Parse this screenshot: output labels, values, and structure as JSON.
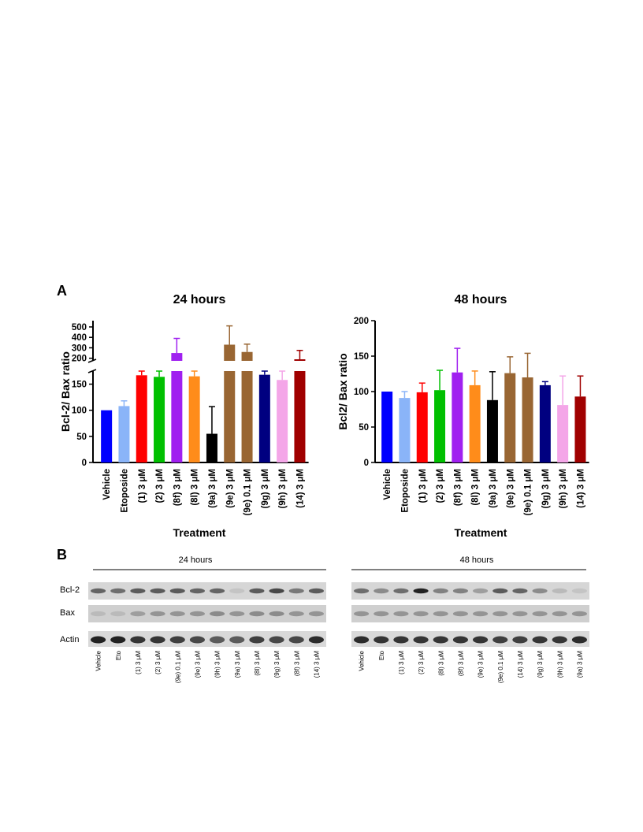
{
  "panels": {
    "a": "A",
    "b": "B"
  },
  "colors": [
    "#0000ff",
    "#8ab4f8",
    "#ff0000",
    "#00c000",
    "#a020f0",
    "#ff8c1a",
    "#000000",
    "#996633",
    "#996633",
    "#000080",
    "#f4a6e8",
    "#a00000"
  ],
  "chart_data": [
    {
      "type": "bar",
      "title": "24 hours",
      "xlabel": "Treatment",
      "ylabel": "Bcl-2/ Bax ratio",
      "axis_break": true,
      "lower_ylim": [
        0,
        175
      ],
      "lower_yticks": [
        "0",
        "50",
        "100",
        "150"
      ],
      "upper_ylim": [
        175,
        560
      ],
      "upper_yticks": [
        "200",
        "300",
        "400",
        "500"
      ],
      "categories": [
        "Vehicle",
        "Etoposide",
        "(1) 3 μM",
        "(2) 3 μM",
        "(8f) 3 μM",
        "(8l) 3 μM",
        "(9a) 3 μM",
        "(9e) 3 μM",
        "(9e) 0.1 μM",
        "(9g) 3 μM",
        "(9h) 3 μM",
        "(14) 3 μM"
      ],
      "values": [
        100,
        108,
        167,
        164,
        250,
        165,
        55,
        330,
        260,
        168,
        158,
        190
      ],
      "errors": [
        0,
        10,
        12,
        25,
        140,
        30,
        52,
        180,
        75,
        20,
        25,
        85
      ]
    },
    {
      "type": "bar",
      "title": "48 hours",
      "xlabel": "Treatment",
      "ylabel": "Bcl2/ Bax ratio",
      "ylim": [
        0,
        200
      ],
      "yticks": [
        "0",
        "50",
        "100",
        "150",
        "200"
      ],
      "categories": [
        "Vehicle",
        "Etoposide",
        "(1) 3 μM",
        "(2) 3 μM",
        "(8f) 3 μM",
        "(8l) 3 μM",
        "(9a) 3 μM",
        "(9e) 3 μM",
        "(9e) 0.1 μM",
        "(9g) 3 μM",
        "(9h) 3 μM",
        "(14) 3 μM"
      ],
      "values": [
        100,
        91,
        99,
        102,
        127,
        109,
        88,
        126,
        120,
        109,
        81,
        93
      ],
      "errors": [
        0,
        9,
        13,
        28,
        34,
        20,
        40,
        23,
        34,
        5,
        41,
        29
      ]
    }
  ],
  "blot": {
    "left": {
      "header": "24 hours",
      "lanes": [
        "Vehicle",
        "Eto",
        "(1) 3 μM",
        "(2) 3 μM",
        "(9e) 0.1 μM",
        "(9e) 3 μM",
        "(9h) 3 μM",
        "(9a) 3 μM",
        "(8l) 3 μM",
        "(9g) 3 μM",
        "(8f) 3 μM",
        "(14) 3 μM"
      ],
      "bcl2": [
        0.55,
        0.5,
        0.6,
        0.6,
        0.6,
        0.55,
        0.55,
        0.05,
        0.6,
        0.7,
        0.45,
        0.6
      ],
      "bax": [
        0.1,
        0.1,
        0.25,
        0.3,
        0.3,
        0.3,
        0.35,
        0.3,
        0.35,
        0.35,
        0.3,
        0.3
      ],
      "actin": [
        0.9,
        0.9,
        0.8,
        0.8,
        0.75,
        0.7,
        0.6,
        0.6,
        0.75,
        0.7,
        0.7,
        0.85
      ]
    },
    "right": {
      "header": "48 hours",
      "lanes": [
        "Vehicle",
        "Eto",
        "(1) 3 μM",
        "(2) 3 μM",
        "(8l) 3 μM",
        "(8f) 3 μM",
        "(9e) 3 μM",
        "(9e) 0.1 μM",
        "(14) 3 μM",
        "(9g) 3 μM",
        "(9h) 3 μM",
        "(9a) 3 μM"
      ],
      "bcl2": [
        0.5,
        0.35,
        0.5,
        0.9,
        0.4,
        0.4,
        0.25,
        0.6,
        0.55,
        0.35,
        0.1,
        0.05
      ],
      "bax": [
        0.3,
        0.3,
        0.3,
        0.3,
        0.3,
        0.3,
        0.3,
        0.3,
        0.3,
        0.3,
        0.3,
        0.3
      ],
      "actin": [
        0.85,
        0.8,
        0.8,
        0.8,
        0.8,
        0.8,
        0.8,
        0.75,
        0.75,
        0.8,
        0.8,
        0.85
      ]
    },
    "rows": [
      "Bcl-2",
      "Bax",
      "Actin"
    ]
  }
}
